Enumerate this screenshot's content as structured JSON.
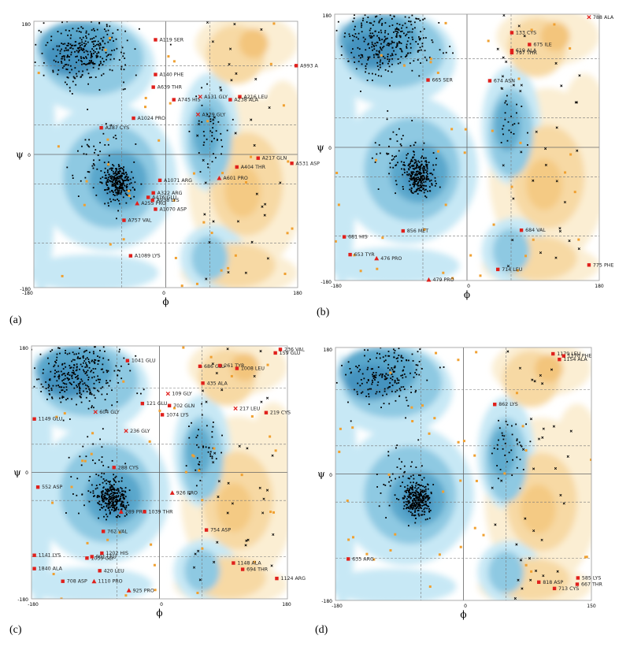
{
  "chart_data": [
    {
      "type": "scatter",
      "panel_label": "(a)",
      "xlabel": "ϕ",
      "ylabel": "ψ",
      "xlim": [
        -180,
        180
      ],
      "ylim": [
        -180,
        180
      ],
      "xtick_labels": [
        "-180",
        "0",
        "180"
      ],
      "ytick_labels": [
        "180",
        "0",
        "-180"
      ],
      "outliers": [
        {
          "label": "A119 SER",
          "phi": -14,
          "psi": 155,
          "marker": "square"
        },
        {
          "label": "A140 PHE",
          "phi": -14,
          "psi": 108,
          "marker": "square"
        },
        {
          "label": "A639 THR",
          "phi": -17,
          "psi": 91,
          "marker": "square"
        },
        {
          "label": "A745 HIS",
          "phi": 11,
          "psi": 74,
          "marker": "square"
        },
        {
          "label": "A131 GLY",
          "phi": 47,
          "psi": 78,
          "marker": "cross"
        },
        {
          "label": "A216 LEU",
          "phi": 101,
          "psi": 78,
          "marker": "square"
        },
        {
          "label": "A238 ALA",
          "phi": 88,
          "psi": 74,
          "marker": "square"
        },
        {
          "label": "A993 A",
          "phi": 178,
          "psi": 120,
          "marker": "square"
        },
        {
          "label": "A1024 PRO",
          "phi": -44,
          "psi": 49,
          "marker": "square"
        },
        {
          "label": "A129 GLY",
          "phi": 44,
          "psi": 54,
          "marker": "cross"
        },
        {
          "label": "A287 CYS",
          "phi": -88,
          "psi": 36,
          "marker": "square"
        },
        {
          "label": "A217 GLN",
          "phi": 126,
          "psi": -5,
          "marker": "square"
        },
        {
          "label": "A531 ASP",
          "phi": 172,
          "psi": -12,
          "marker": "square"
        },
        {
          "label": "A404 THR",
          "phi": 97,
          "psi": -17,
          "marker": "square"
        },
        {
          "label": "A1071 ARG",
          "phi": -8,
          "psi": -35,
          "marker": "square"
        },
        {
          "label": "A601 PRO",
          "phi": 73,
          "psi": -32,
          "marker": "triangle"
        },
        {
          "label": "A322 ARG",
          "phi": -17,
          "psi": -52,
          "marker": "square"
        },
        {
          "label": "A476 GLU",
          "phi": -24,
          "psi": -58,
          "marker": "square"
        },
        {
          "label": "A255 PRO",
          "phi": -39,
          "psi": -66,
          "marker": "triangle"
        },
        {
          "label": "A938 LYS",
          "phi": -18,
          "psi": -62,
          "marker": "square"
        },
        {
          "label": "A1070 ASP",
          "phi": -14,
          "psi": -74,
          "marker": "square"
        },
        {
          "label": "A757 VAL",
          "phi": -57,
          "psi": -89,
          "marker": "square"
        },
        {
          "label": "A1089 LYS",
          "phi": -48,
          "psi": -137,
          "marker": "square"
        }
      ]
    },
    {
      "type": "scatter",
      "panel_label": "(b)",
      "xlabel": "ϕ",
      "ylabel": "ψ",
      "xlim": [
        -180,
        180
      ],
      "ylim": [
        -180,
        180
      ],
      "xtick_labels": [
        "-180",
        "0",
        "180"
      ],
      "ytick_labels": [
        "180",
        "0",
        "-180"
      ],
      "outliers": [
        {
          "label": "788 ALA",
          "phi": 166,
          "psi": 176,
          "marker": "cross"
        },
        {
          "label": "133 CYS",
          "phi": 61,
          "psi": 155,
          "marker": "square"
        },
        {
          "label": "675 ILE",
          "phi": 85,
          "psi": 139,
          "marker": "square"
        },
        {
          "label": "619 ALA",
          "phi": 61,
          "psi": 131,
          "marker": "square"
        },
        {
          "label": "797 THR",
          "phi": 61,
          "psi": 128,
          "marker": "square"
        },
        {
          "label": "665 SER",
          "phi": -53,
          "psi": 91,
          "marker": "square"
        },
        {
          "label": "674 ASN",
          "phi": 31,
          "psi": 90,
          "marker": "square"
        },
        {
          "label": "681 HIS",
          "phi": -167,
          "psi": -121,
          "marker": "square"
        },
        {
          "label": "856 MET",
          "phi": -87,
          "psi": -113,
          "marker": "square"
        },
        {
          "label": "684 VAL",
          "phi": 74,
          "psi": -112,
          "marker": "square"
        },
        {
          "label": "653 TYR",
          "phi": -159,
          "psi": -145,
          "marker": "square"
        },
        {
          "label": "476 PRO",
          "phi": -123,
          "psi": -150,
          "marker": "triangle"
        },
        {
          "label": "775 PHE",
          "phi": 166,
          "psi": -159,
          "marker": "square"
        },
        {
          "label": "714 LEU",
          "phi": 42,
          "psi": -165,
          "marker": "square"
        },
        {
          "label": "479 PRO",
          "phi": -52,
          "psi": -179,
          "marker": "triangle"
        }
      ]
    },
    {
      "type": "scatter",
      "panel_label": "(c)",
      "xlabel": "ϕ",
      "ylabel": "ψ",
      "xlim": [
        -180,
        180
      ],
      "ylim": [
        -180,
        180
      ],
      "xtick_labels": [
        "-180",
        "0",
        "180"
      ],
      "ytick_labels": [
        "180",
        "0",
        "-180"
      ],
      "outliers": [
        {
          "label": "236 VAL",
          "phi": 170,
          "psi": 175,
          "marker": "square"
        },
        {
          "label": "159 GLU",
          "phi": 163,
          "psi": 170,
          "marker": "square"
        },
        {
          "label": "1041 GLU",
          "phi": -45,
          "psi": 159,
          "marker": "square"
        },
        {
          "label": "686 GLU",
          "phi": 57,
          "psi": 151,
          "marker": "square"
        },
        {
          "label": "261 TYR",
          "phi": 85,
          "psi": 152,
          "marker": "square"
        },
        {
          "label": "1008 LEU",
          "phi": 109,
          "psi": 148,
          "marker": "square"
        },
        {
          "label": "435 ALA",
          "phi": 61,
          "psi": 127,
          "marker": "square"
        },
        {
          "label": "109 GLY",
          "phi": 12,
          "psi": 112,
          "marker": "cross"
        },
        {
          "label": "121 GLU",
          "phi": -24,
          "psi": 98,
          "marker": "square"
        },
        {
          "label": "702 GLN",
          "phi": 14,
          "psi": 95,
          "marker": "square"
        },
        {
          "label": "217 LEU",
          "phi": 107,
          "psi": 91,
          "marker": "cross"
        },
        {
          "label": "219 CYS",
          "phi": 150,
          "psi": 85,
          "marker": "square"
        },
        {
          "label": "1074 LYS",
          "phi": 4,
          "psi": 82,
          "marker": "square"
        },
        {
          "label": "604 GLY",
          "phi": -90,
          "psi": 86,
          "marker": "cross"
        },
        {
          "label": "1149 GLU",
          "phi": -176,
          "psi": 76,
          "marker": "square"
        },
        {
          "label": "236 GLY",
          "phi": -47,
          "psi": 59,
          "marker": "cross"
        },
        {
          "label": "288 CYS",
          "phi": -64,
          "psi": 7,
          "marker": "square"
        },
        {
          "label": "552 ASP",
          "phi": -171,
          "psi": -21,
          "marker": "square"
        },
        {
          "label": "926 PRO",
          "phi": 18,
          "psi": -29,
          "marker": "triangle"
        },
        {
          "label": "289 PRO",
          "phi": -54,
          "psi": -56,
          "marker": "triangle"
        },
        {
          "label": "1039 THR",
          "phi": -21,
          "psi": -56,
          "marker": "square"
        },
        {
          "label": "762 VAL",
          "phi": -79,
          "psi": -84,
          "marker": "square"
        },
        {
          "label": "754 ASP",
          "phi": 66,
          "psi": -82,
          "marker": "square"
        },
        {
          "label": "1202 HIS",
          "phi": -81,
          "psi": -115,
          "marker": "square"
        },
        {
          "label": "1059 GLY",
          "phi": -102,
          "psi": -122,
          "marker": "square"
        },
        {
          "label": "901 LEU",
          "phi": -95,
          "psi": -120,
          "marker": "square"
        },
        {
          "label": "1141 LYS",
          "phi": -176,
          "psi": -118,
          "marker": "square"
        },
        {
          "label": "1148 ALA",
          "phi": 104,
          "psi": -129,
          "marker": "square"
        },
        {
          "label": "694 THR",
          "phi": 117,
          "psi": -138,
          "marker": "square"
        },
        {
          "label": "1840 ALA",
          "phi": -176,
          "psi": -137,
          "marker": "square"
        },
        {
          "label": "420 LEU",
          "phi": -84,
          "psi": -140,
          "marker": "square"
        },
        {
          "label": "1124 ARG",
          "phi": 165,
          "psi": -151,
          "marker": "square"
        },
        {
          "label": "708 ASP",
          "phi": -136,
          "psi": -155,
          "marker": "square"
        },
        {
          "label": "1110 PRO",
          "phi": -92,
          "psi": -155,
          "marker": "triangle"
        },
        {
          "label": "925 PRO",
          "phi": -43,
          "psi": -168,
          "marker": "triangle"
        }
      ]
    },
    {
      "type": "scatter",
      "panel_label": "(d)",
      "xlabel": "ϕ",
      "ylabel": "ψ",
      "xlim": [
        -180,
        180
      ],
      "ylim": [
        -180,
        180
      ],
      "xtick_labels": [
        "-180",
        "0",
        "150"
      ],
      "ytick_labels": [
        "180",
        "0",
        "-180"
      ],
      "outliers": [
        {
          "label": "1179 LEU",
          "phi": 126,
          "psi": 171,
          "marker": "square"
        },
        {
          "label": "1170 PHE",
          "phi": 141,
          "psi": 168,
          "marker": "square"
        },
        {
          "label": "1154 ALA",
          "phi": 135,
          "psi": 163,
          "marker": "square"
        },
        {
          "label": "862 LYS",
          "phi": 44,
          "psi": 99,
          "marker": "square"
        },
        {
          "label": "635 ARG",
          "phi": -162,
          "psi": -121,
          "marker": "square"
        },
        {
          "label": "818 ASP",
          "phi": 106,
          "psi": -154,
          "marker": "square"
        },
        {
          "label": "585 LYS",
          "phi": 161,
          "psi": -148,
          "marker": "square"
        },
        {
          "label": "667 THR",
          "phi": 160,
          "psi": -157,
          "marker": "square"
        },
        {
          "label": "713 CYS",
          "phi": 128,
          "psi": -163,
          "marker": "square"
        }
      ]
    }
  ]
}
